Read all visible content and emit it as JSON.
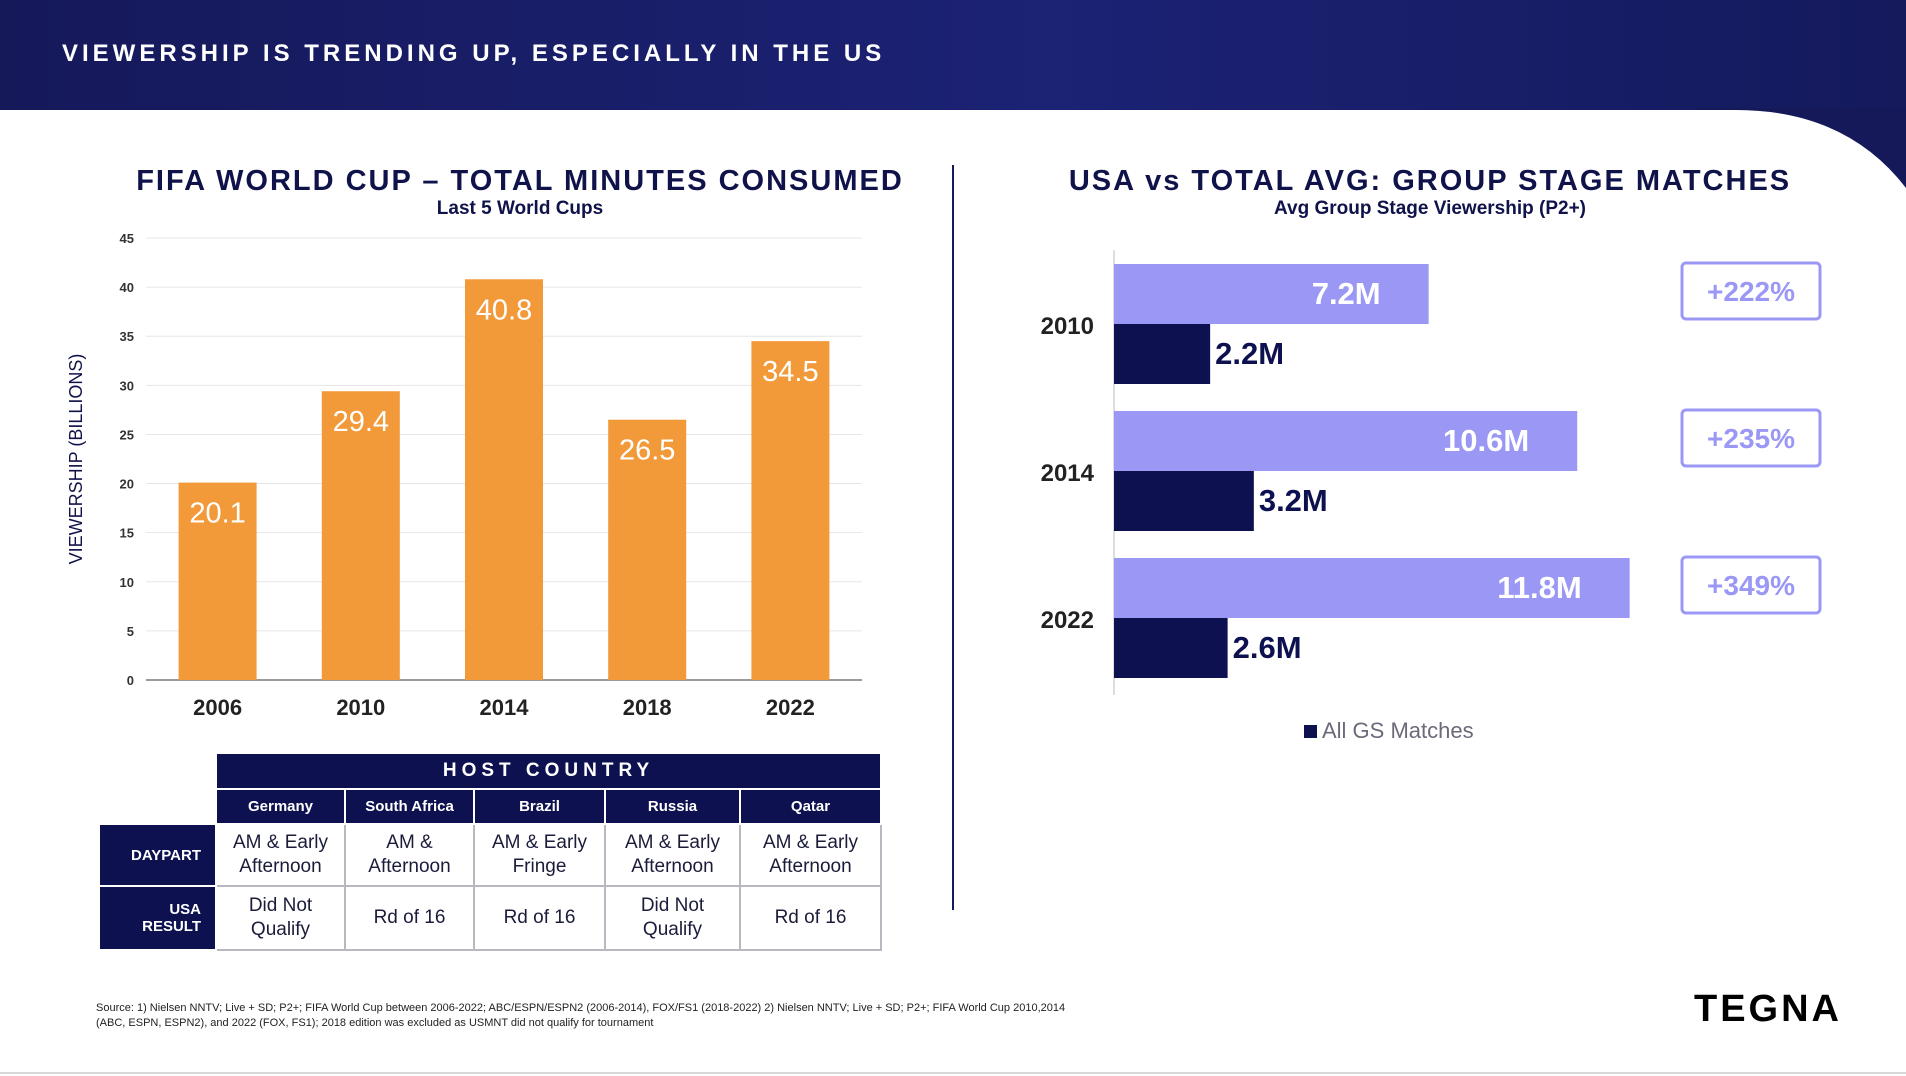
{
  "header": {
    "title": "VIEWERSHIP IS TRENDING UP, ESPECIALLY IN THE US"
  },
  "colors": {
    "navy": "#0e1150",
    "orange": "#f29a3a",
    "lavender": "#9b98f5",
    "white": "#ffffff"
  },
  "chart_data": [
    {
      "type": "bar",
      "title": "FIFA WORLD CUP – TOTAL MINUTES CONSUMED",
      "subtitle": "Last 5 World Cups",
      "ylabel": "VIEWERSHIP (BILLIONS)",
      "categories": [
        "2006",
        "2010",
        "2014",
        "2018",
        "2022"
      ],
      "values": [
        20.1,
        29.4,
        40.8,
        26.5,
        34.5
      ],
      "value_labels": [
        "20.1",
        "29.4",
        "40.8",
        "26.5",
        "34.5"
      ],
      "ylim": [
        0,
        45
      ],
      "yticks": [
        0,
        5,
        10,
        15,
        20,
        25,
        30,
        35,
        40,
        45
      ],
      "grid": true,
      "color": "#f29a3a"
    },
    {
      "type": "bar",
      "orientation": "horizontal",
      "title": "USA vs TOTAL AVG: GROUP STAGE MATCHES",
      "subtitle": "Avg Group Stage Viewership (P2+)",
      "categories": [
        "2010",
        "2014",
        "2022"
      ],
      "series": [
        {
          "values": [
            7.2,
            10.6,
            11.8
          ],
          "labels": [
            "7.2M",
            "10.6M",
            "11.8M"
          ],
          "color": "#9b98f5"
        },
        {
          "name": "All GS Matches",
          "values": [
            2.2,
            3.2,
            2.6
          ],
          "labels": [
            "2.2M",
            "3.2M",
            "2.6M"
          ],
          "color": "#0e1150"
        }
      ],
      "growth": [
        "+222%",
        "+235%",
        "+349%"
      ],
      "legend": "bottom"
    }
  ],
  "host_table": {
    "title": "HOST COUNTRY",
    "countries": [
      "Germany",
      "South Africa",
      "Brazil",
      "Russia",
      "Qatar"
    ],
    "rows": [
      {
        "label": [
          "DAYPART"
        ],
        "cells": [
          [
            "AM & Early",
            "Afternoon"
          ],
          [
            "AM &",
            "Afternoon"
          ],
          [
            "AM & Early",
            "Fringe"
          ],
          [
            "AM & Early",
            "Afternoon"
          ],
          [
            "AM & Early",
            "Afternoon"
          ]
        ]
      },
      {
        "label": [
          "USA",
          "RESULT"
        ],
        "cells": [
          [
            "Did Not",
            "Qualify"
          ],
          [
            "Rd of 16"
          ],
          [
            "Rd of 16"
          ],
          [
            "Did Not",
            "Qualify"
          ],
          [
            "Rd of 16"
          ]
        ]
      }
    ]
  },
  "footer": {
    "source_line1": "Source: 1) Nielsen NNTV; Live + SD; P2+; FIFA World Cup between 2006-2022; ABC/ESPN/ESPN2 (2006-2014), FOX/FS1 (2018-2022) 2) Nielsen NNTV; Live + SD; P2+; FIFA World Cup 2010,2014",
    "source_line2": "(ABC, ESPN, ESPN2), and 2022 (FOX, FS1); 2018 edition was excluded as USMNT did not qualify for tournament",
    "logo": "TEGNA"
  }
}
